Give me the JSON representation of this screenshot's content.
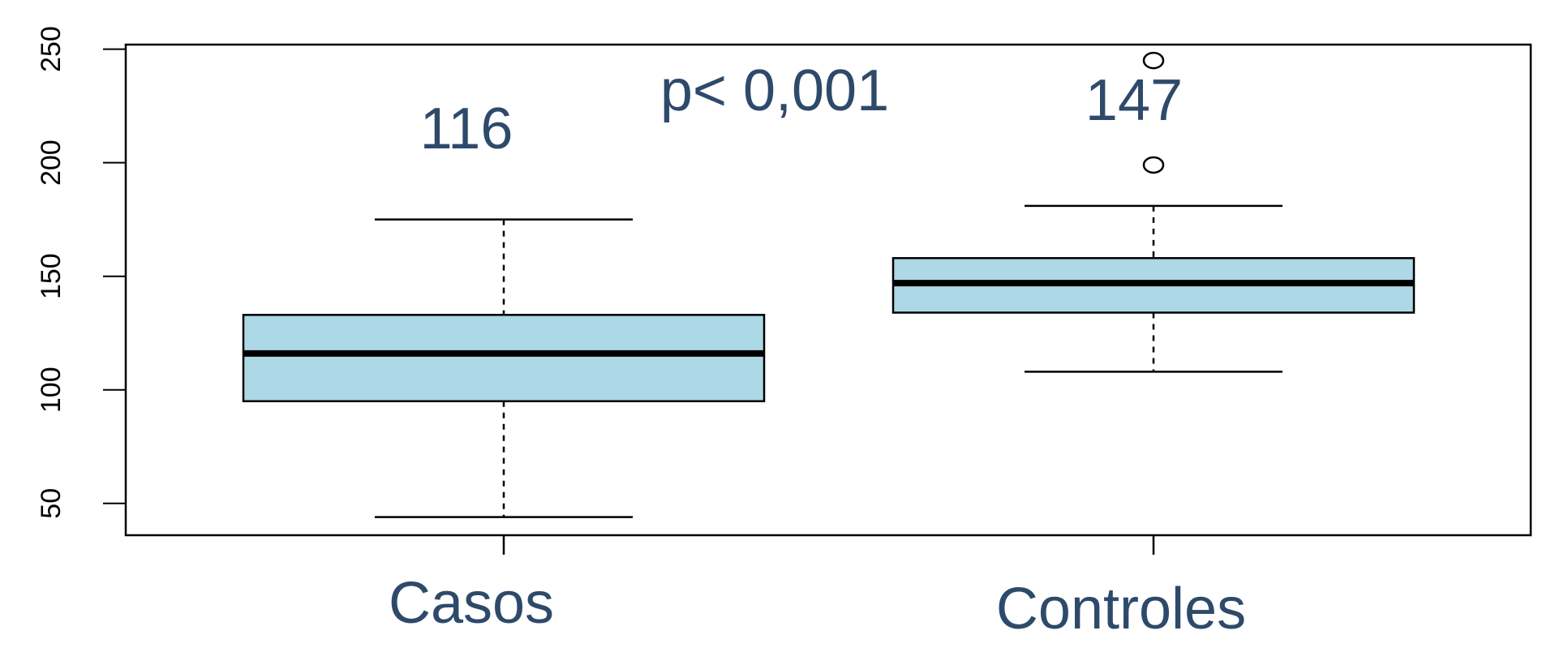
{
  "chart_data": {
    "type": "boxplot",
    "categories": [
      "Casos",
      "Controles"
    ],
    "boxes": [
      {
        "category": "Casos",
        "whisker_low": 44,
        "q1": 95,
        "median": 116,
        "q3": 133,
        "whisker_high": 175,
        "outliers": []
      },
      {
        "category": "Controles",
        "whisker_low": 108,
        "q1": 134,
        "median": 147,
        "q3": 158,
        "whisker_high": 181,
        "outliers": [
          199,
          245
        ]
      }
    ],
    "ylim": [
      36,
      252
    ],
    "yticks": [
      50,
      100,
      150,
      200,
      250
    ],
    "ytick_labels": [
      "50",
      "100",
      "150",
      "200",
      "250"
    ],
    "annotations": {
      "median_casos": "116",
      "median_controles": "147",
      "p_value": "p< 0,001"
    },
    "colors": {
      "box_fill": "#add8e6",
      "annotation": "#2e4a6b",
      "stroke": "#000000"
    }
  }
}
